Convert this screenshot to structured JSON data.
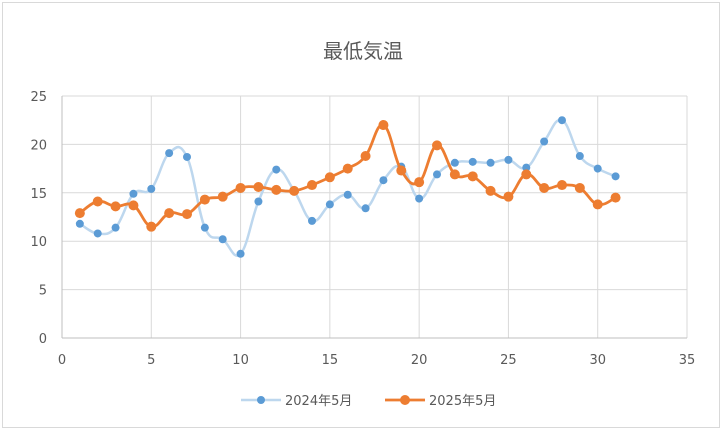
{
  "chart_data": {
    "type": "line",
    "title": "最低気温",
    "xlabel": "",
    "ylabel": "",
    "xlim": [
      0,
      35
    ],
    "ylim": [
      0,
      25
    ],
    "x_ticks": [
      0,
      5,
      10,
      15,
      20,
      25,
      30,
      35
    ],
    "y_ticks": [
      0,
      5,
      10,
      15,
      20,
      25
    ],
    "grid": true,
    "smoothed": true,
    "legend_position": "bottom",
    "x": [
      1,
      2,
      3,
      4,
      5,
      6,
      7,
      8,
      9,
      10,
      11,
      12,
      13,
      14,
      15,
      16,
      17,
      18,
      19,
      20,
      21,
      22,
      23,
      24,
      25,
      26,
      27,
      28,
      29,
      30,
      31
    ],
    "series": [
      {
        "name": "2024年5月",
        "line_color": "#bdd7ee",
        "marker_color": "#5b9bd5",
        "values": [
          11.8,
          10.8,
          11.4,
          14.9,
          15.4,
          19.1,
          18.7,
          11.4,
          10.2,
          8.7,
          14.1,
          17.4,
          15.2,
          12.1,
          13.8,
          14.8,
          13.4,
          16.3,
          17.7,
          14.4,
          16.9,
          18.1,
          18.2,
          18.1,
          18.4,
          17.6,
          20.3,
          22.5,
          18.8,
          17.5,
          16.7
        ]
      },
      {
        "name": "2025年5月",
        "line_color": "#ed7d31",
        "marker_color": "#ed7d31",
        "values": [
          12.9,
          14.1,
          13.6,
          13.7,
          11.5,
          12.9,
          12.8,
          14.3,
          14.6,
          15.5,
          15.6,
          15.3,
          15.2,
          15.8,
          16.6,
          17.5,
          18.8,
          22.0,
          17.3,
          16.1,
          19.9,
          16.9,
          16.7,
          15.2,
          14.6,
          16.9,
          15.5,
          15.8,
          15.5,
          13.8,
          14.5
        ]
      }
    ]
  }
}
